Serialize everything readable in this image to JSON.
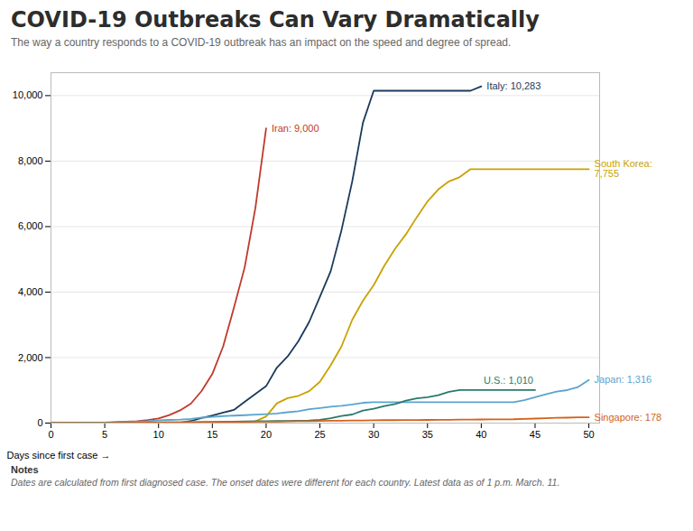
{
  "chart_data": {
    "type": "line",
    "title": "COVID-19 Outbreaks Can Vary Dramatically",
    "subtitle": "The way a country responds to a COVID-19 outbreak has an impact on the speed and degree of spread.",
    "x_label": "Days since first case →",
    "notes_header": "Notes",
    "notes_text": "Dates are calculated from first diagnosed case. The onset dates were different for each country. Latest data as of 1 p.m. March. 11.",
    "xlim": [
      0,
      51
    ],
    "ylim": [
      0,
      10700
    ],
    "xticks": [
      0,
      5,
      10,
      15,
      20,
      25,
      30,
      35,
      40,
      45,
      50
    ],
    "yticks": [
      0,
      {
        "value": 2000,
        "label": "2,000"
      },
      {
        "value": 4000,
        "label": "4,000"
      },
      {
        "value": 6000,
        "label": "6,000"
      },
      {
        "value": 8000,
        "label": "8,000"
      },
      {
        "value": 10000,
        "label": "10,000"
      }
    ],
    "grid": true,
    "series": [
      {
        "name": "Italy",
        "color": "#1a3a5c",
        "label": "Italy: 10,283",
        "x": [
          0,
          1,
          2,
          3,
          4,
          5,
          6,
          7,
          8,
          9,
          10,
          11,
          12,
          13,
          14,
          15,
          16,
          17,
          18,
          19,
          20,
          21,
          22,
          23,
          24,
          25,
          26,
          27,
          28,
          29,
          30,
          31,
          32,
          33,
          34,
          35,
          36,
          37,
          38,
          39,
          40
        ],
        "values": [
          2,
          2,
          3,
          3,
          3,
          3,
          3,
          3,
          3,
          3,
          3,
          4,
          20,
          62,
          155,
          229,
          322,
          400,
          650,
          888,
          1128,
          1694,
          2036,
          2502,
          3089,
          3858,
          4636,
          5883,
          7375,
          9172,
          10149,
          10149,
          10149,
          10149,
          10149,
          10149,
          10149,
          10149,
          10149,
          10149,
          10283
        ]
      },
      {
        "name": "Iran",
        "color": "#c0392b",
        "label": "Iran: 9,000",
        "x": [
          0,
          1,
          2,
          3,
          4,
          5,
          6,
          7,
          8,
          9,
          10,
          11,
          12,
          13,
          14,
          15,
          16,
          17,
          18,
          19,
          20
        ],
        "values": [
          2,
          2,
          4,
          4,
          4,
          15,
          28,
          43,
          61,
          95,
          139,
          245,
          388,
          593,
          978,
          1501,
          2336,
          3513,
          4747,
          6566,
          9000
        ]
      },
      {
        "name": "South Korea",
        "color": "#c8a200",
        "label": "South Korea:\n7,755",
        "x": [
          0,
          1,
          2,
          3,
          4,
          5,
          6,
          7,
          8,
          9,
          10,
          11,
          12,
          13,
          14,
          15,
          16,
          17,
          18,
          19,
          20,
          21,
          22,
          23,
          24,
          25,
          26,
          27,
          28,
          29,
          30,
          31,
          32,
          33,
          34,
          35,
          36,
          37,
          38,
          39,
          40,
          41,
          42,
          43,
          44,
          45,
          46,
          47,
          48,
          49,
          50
        ],
        "values": [
          1,
          2,
          4,
          4,
          4,
          6,
          15,
          28,
          28,
          28,
          28,
          28,
          28,
          29,
          30,
          32,
          46,
          46,
          46,
          51,
          204,
          602,
          763,
          833,
          977,
          1261,
          1766,
          2337,
          3150,
          3736,
          4212,
          4812,
          5328,
          5766,
          6284,
          6767,
          7134,
          7382,
          7513,
          7755,
          7755,
          7755,
          7755,
          7755,
          7755,
          7755,
          7755,
          7755,
          7755,
          7755,
          7755
        ]
      },
      {
        "name": "Japan",
        "color": "#5ba4cf",
        "label": "Japan: 1,316",
        "x": [
          0,
          1,
          2,
          3,
          4,
          5,
          6,
          7,
          8,
          9,
          10,
          11,
          12,
          13,
          14,
          15,
          16,
          17,
          18,
          19,
          20,
          21,
          22,
          23,
          24,
          25,
          26,
          27,
          28,
          29,
          30,
          31,
          32,
          33,
          34,
          35,
          36,
          37,
          38,
          39,
          40,
          41,
          42,
          43,
          44,
          45,
          46,
          47,
          48,
          49,
          50
        ],
        "values": [
          1,
          3,
          3,
          7,
          11,
          11,
          22,
          33,
          45,
          60,
          84,
          96,
          105,
          125,
          166,
          189,
          214,
          228,
          241,
          256,
          274,
          293,
          331,
          360,
          423,
          461,
          502,
          528,
          568,
          620,
          639,
          639,
          639,
          639,
          639,
          639,
          639,
          639,
          639,
          639,
          639,
          639,
          639,
          639,
          701,
          791,
          878,
          963,
          1007,
          1101,
          1316
        ]
      },
      {
        "name": "U.S.",
        "color": "#2a7a6b",
        "label": "U.S.: 1,010",
        "x": [
          0,
          1,
          2,
          3,
          4,
          5,
          6,
          7,
          8,
          9,
          10,
          11,
          12,
          13,
          14,
          15,
          16,
          17,
          18,
          19,
          20,
          21,
          22,
          23,
          24,
          25,
          26,
          27,
          28,
          29,
          30,
          31,
          32,
          33,
          34,
          35,
          36,
          37,
          38,
          39,
          40,
          41,
          42,
          43,
          44,
          45
        ],
        "values": [
          1,
          1,
          2,
          3,
          5,
          5,
          6,
          6,
          11,
          13,
          14,
          15,
          15,
          15,
          25,
          30,
          30,
          43,
          53,
          58,
          60,
          62,
          68,
          74,
          76,
          98,
          149,
          217,
          262,
          382,
          435,
          518,
          583,
          683,
          757,
          791,
          851,
          955,
          1010,
          1010,
          1010,
          1010,
          1010,
          1010,
          1010,
          1010
        ]
      },
      {
        "name": "Singapore",
        "color": "#d4621a",
        "label": "Singapore: 178",
        "x": [
          0,
          1,
          2,
          3,
          4,
          5,
          6,
          7,
          8,
          9,
          10,
          11,
          12,
          13,
          14,
          15,
          16,
          17,
          18,
          19,
          20,
          21,
          22,
          23,
          24,
          25,
          26,
          27,
          28,
          29,
          30,
          31,
          32,
          33,
          34,
          35,
          36,
          37,
          38,
          39,
          40,
          41,
          42,
          43,
          44,
          45,
          46,
          47,
          48,
          49,
          50
        ],
        "values": [
          1,
          2,
          3,
          3,
          4,
          5,
          7,
          10,
          13,
          16,
          18,
          18,
          20,
          24,
          28,
          30,
          33,
          36,
          40,
          43,
          45,
          47,
          50,
          57,
          58,
          67,
          72,
          75,
          77,
          81,
          84,
          89,
          90,
          91,
          93,
          96,
          98,
          102,
          106,
          108,
          110,
          112,
          114,
          117,
          130,
          138,
          150,
          160,
          166,
          175,
          178
        ]
      }
    ]
  }
}
